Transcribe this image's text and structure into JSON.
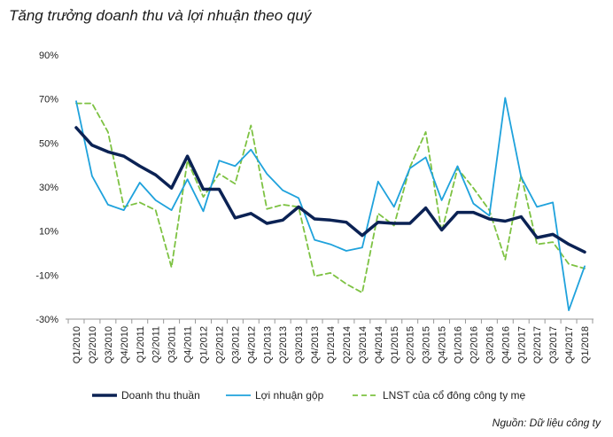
{
  "chart_data": {
    "type": "line",
    "title": "Tăng trưởng doanh thu và lợi nhuận theo quý",
    "source": "Nguồn: Dữ liệu công ty",
    "ylim": [
      -30,
      90
    ],
    "yticks": [
      "-30%",
      "-10%",
      "10%",
      "30%",
      "50%",
      "70%",
      "90%"
    ],
    "ytick_values": [
      -30,
      -10,
      10,
      30,
      50,
      70,
      90
    ],
    "grid": false,
    "legend_position": "bottom",
    "x": [
      "Q1/2010",
      "Q2/2010",
      "Q3/2010",
      "Q4/2010",
      "Q1/2011",
      "Q2/2011",
      "Q3/2011",
      "Q4/2011",
      "Q1/2012",
      "Q2/2012",
      "Q3/2012",
      "Q4/2012",
      "Q1/2013",
      "Q2/2013",
      "Q3/2013",
      "Q4/2013",
      "Q1/2014",
      "Q2/2014",
      "Q3/2014",
      "Q4/2014",
      "Q1/2015",
      "Q2/2015",
      "Q3/2015",
      "Q4/2015",
      "Q1/2016",
      "Q2/2016",
      "Q3/2016",
      "Q4/2016",
      "Q1/2017",
      "Q2/2017",
      "Q3/2017",
      "Q4/2017",
      "Q1/2018"
    ],
    "series": [
      {
        "name": "Doanh thu thuần",
        "color": "#0b2254",
        "style": "solid",
        "width": 3.5,
        "values": [
          57,
          49,
          46,
          44,
          39.5,
          35.5,
          29.5,
          44,
          29,
          29,
          16,
          18,
          13.5,
          15,
          21,
          15.5,
          15,
          14,
          8,
          14,
          13.5,
          13.5,
          20.5,
          10.5,
          18.5,
          18.5,
          15.5,
          14.5,
          16.5,
          7,
          8.5,
          4,
          0.5
        ]
      },
      {
        "name": "Lợi nhuận gộp",
        "color": "#1fa2dc",
        "style": "solid",
        "width": 1.8,
        "values": [
          69,
          35,
          22,
          19.5,
          32,
          24,
          19.5,
          33.5,
          19,
          42,
          39.5,
          47,
          36,
          28.5,
          25,
          6,
          4,
          1,
          2.5,
          32.5,
          21,
          38.5,
          43.5,
          24,
          39.5,
          22.5,
          17,
          70.5,
          34.5,
          21,
          23,
          -26,
          -6
        ]
      },
      {
        "name": "LNST của cổ đông công ty mẹ",
        "color": "#7dc242",
        "style": "dashed",
        "width": 1.8,
        "values": [
          68,
          68,
          55,
          21,
          23,
          19.5,
          -6.5,
          42,
          25.5,
          36,
          31.5,
          58,
          20,
          22,
          21,
          -10.5,
          -9,
          -14,
          -18,
          18,
          12.5,
          39,
          55,
          9.5,
          38.5,
          29.5,
          19.5,
          -3,
          35.5,
          4,
          5,
          -5,
          -7
        ]
      }
    ]
  }
}
